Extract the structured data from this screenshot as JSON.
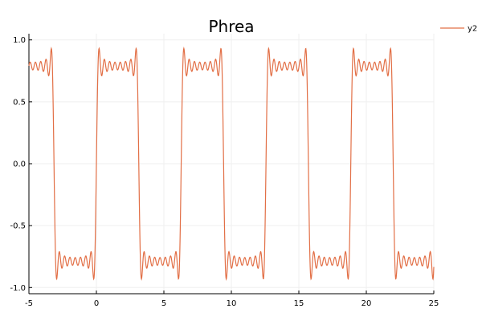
{
  "chart_data": {
    "type": "line",
    "title": "Phrea",
    "xlabel": "",
    "ylabel": "",
    "xlim": [
      -5,
      25
    ],
    "ylim": [
      -1.05,
      1.05
    ],
    "x_ticks": [
      -5,
      0,
      5,
      10,
      15,
      20,
      25
    ],
    "x_tick_labels": [
      "-5",
      "0",
      "5",
      "10",
      "15",
      "20",
      "25"
    ],
    "y_ticks": [
      -1.0,
      -0.5,
      0.0,
      0.5,
      1.0
    ],
    "y_tick_labels": [
      "-1.0",
      "-0.5",
      "0.0",
      "0.5",
      "1.0"
    ],
    "grid": true,
    "legend_position": "top-right",
    "series": [
      {
        "name": "y2",
        "color": "#e26f46",
        "function": "square-wave partial Fourier sum (odd harmonics 1-15) of sin(x)",
        "x_range": [
          -5,
          25
        ],
        "amplitude": 1.0
      }
    ]
  }
}
